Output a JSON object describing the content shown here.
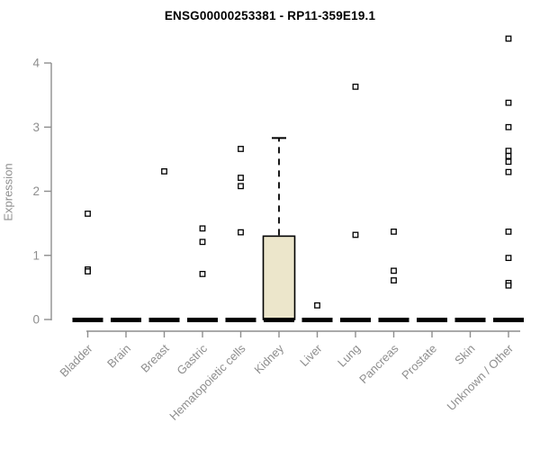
{
  "header": {
    "title": "ENSG00000253381 - RP11-359E19.1"
  },
  "chart_data": {
    "type": "box",
    "title": "ENSG00000253381 - RP11-359E19.1",
    "xlabel": "",
    "ylabel": "Expression",
    "ylim": [
      0,
      4
    ],
    "yticks": [
      0,
      1,
      2,
      3,
      4
    ],
    "grid": false,
    "legend": "none",
    "categories": [
      "Bladder",
      "Brain",
      "Breast",
      "Gastric",
      "Hematopoietic cells",
      "Kidney",
      "Liver",
      "Lung",
      "Pancreas",
      "Prostate",
      "Skin",
      "Unknown / Other"
    ],
    "boxes": [
      {
        "category": "Bladder",
        "q1": 0,
        "median": 0,
        "q3": 0,
        "whisker_low": 0,
        "whisker_high": 0,
        "outliers": [
          1.65,
          0.78,
          0.75
        ]
      },
      {
        "category": "Brain",
        "q1": 0,
        "median": 0,
        "q3": 0,
        "whisker_low": 0,
        "whisker_high": 0,
        "outliers": []
      },
      {
        "category": "Breast",
        "q1": 0,
        "median": 0,
        "q3": 0,
        "whisker_low": 0,
        "whisker_high": 0,
        "outliers": [
          2.31
        ]
      },
      {
        "category": "Gastric",
        "q1": 0,
        "median": 0,
        "q3": 0,
        "whisker_low": 0,
        "whisker_high": 0,
        "outliers": [
          1.42,
          1.21,
          0.71
        ]
      },
      {
        "category": "Hematopoietic cells",
        "q1": 0,
        "median": 0,
        "q3": 0,
        "whisker_low": 0,
        "whisker_high": 0,
        "outliers": [
          2.66,
          2.21,
          2.08,
          1.36
        ]
      },
      {
        "category": "Kidney",
        "q1": 0,
        "median": 0,
        "q3": 1.3,
        "whisker_low": 0,
        "whisker_high": 2.83,
        "outliers": []
      },
      {
        "category": "Liver",
        "q1": 0,
        "median": 0,
        "q3": 0,
        "whisker_low": 0,
        "whisker_high": 0,
        "outliers": [
          0.22
        ]
      },
      {
        "category": "Lung",
        "q1": 0,
        "median": 0,
        "q3": 0,
        "whisker_low": 0,
        "whisker_high": 0,
        "outliers": [
          3.63,
          1.32
        ]
      },
      {
        "category": "Pancreas",
        "q1": 0,
        "median": 0,
        "q3": 0,
        "whisker_low": 0,
        "whisker_high": 0,
        "outliers": [
          1.37,
          0.76,
          0.61
        ]
      },
      {
        "category": "Prostate",
        "q1": 0,
        "median": 0,
        "q3": 0,
        "whisker_low": 0,
        "whisker_high": 0,
        "outliers": []
      },
      {
        "category": "Skin",
        "q1": 0,
        "median": 0,
        "q3": 0,
        "whisker_low": 0,
        "whisker_high": 0,
        "outliers": []
      },
      {
        "category": "Unknown / Other",
        "q1": 0,
        "median": 0,
        "q3": 0,
        "whisker_low": 0,
        "whisker_high": 0,
        "outliers": [
          4.38,
          3.38,
          3.0,
          2.63,
          2.55,
          2.46,
          2.3,
          1.37,
          0.96,
          0.57,
          0.53
        ]
      }
    ],
    "colors": {
      "box_fill": "#ece6cb",
      "box_border": "#000000",
      "axis": "#8e8e8e",
      "tick_text": "#8e8e8e",
      "point_stroke": "#000000",
      "point_fill": "#ffffff",
      "median_bar": "#000000",
      "title_text": "#000000",
      "background": "#ffffff"
    }
  }
}
